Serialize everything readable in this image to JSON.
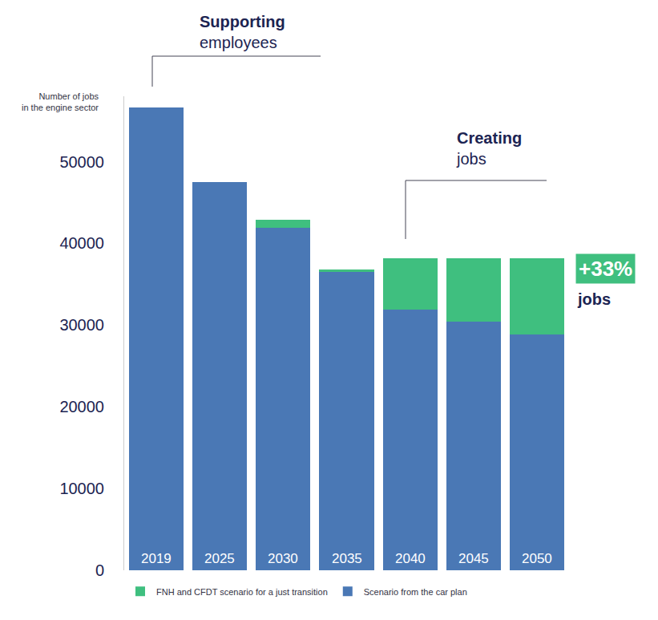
{
  "chart_data": {
    "type": "bar",
    "stacked": true,
    "y_label": "Number of jobs in the engine sector",
    "categories": [
      "2019",
      "2025",
      "2030",
      "2035",
      "2040",
      "2045",
      "2050"
    ],
    "series": [
      {
        "name": "Scenario from the car plan",
        "color": "#4a78b5",
        "values": [
          56600,
          47500,
          41900,
          36500,
          31900,
          30400,
          28900
        ]
      },
      {
        "name": "FNH and CFDT scenario for a just transition",
        "color": "#3fbf7f",
        "values": [
          0,
          0,
          1000,
          300,
          6300,
          7800,
          9300
        ]
      }
    ],
    "ylim": [
      0,
      58000
    ],
    "yticks": [
      0,
      10000,
      20000,
      30000,
      40000,
      50000
    ],
    "grid": false,
    "legend": "bottom",
    "annotations": [
      {
        "bold": "Supporting",
        "text": "employees"
      },
      {
        "bold": "Creating",
        "text": "jobs"
      },
      {
        "bold": "+33%",
        "text": "jobs"
      }
    ]
  }
}
